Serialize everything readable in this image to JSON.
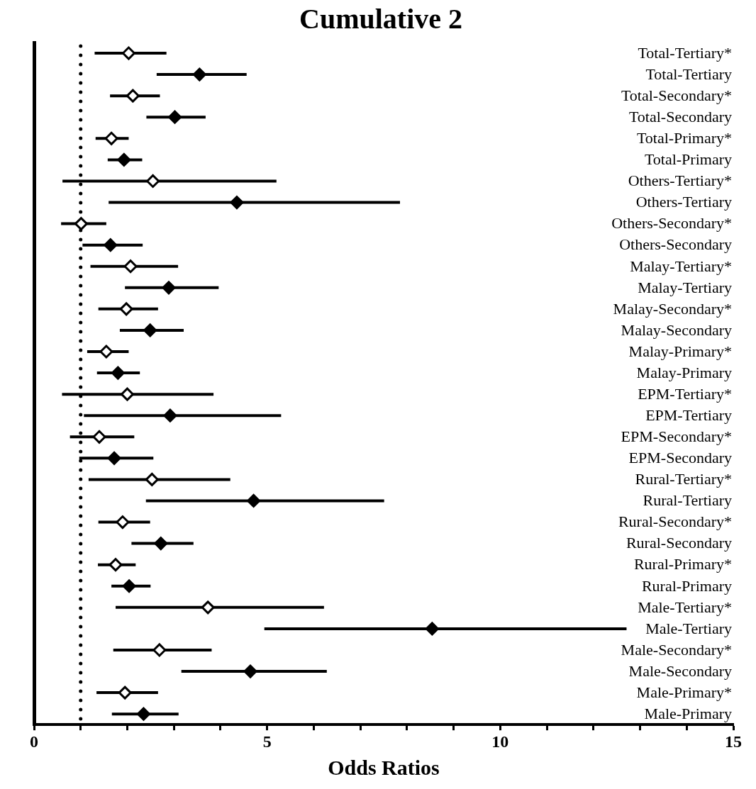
{
  "chart_data": {
    "type": "scatter",
    "title": "Cumulative 2",
    "xlabel": "Odds Ratios",
    "orientation": "horizontal",
    "marker": "diamond",
    "categories": [
      "Total-Tertiary*",
      "Total-Tertiary",
      "Total-Secondary*",
      "Total-Secondary",
      "Total-Primary*",
      "Total-Primary",
      "Others-Tertiary*",
      "Others-Tertiary",
      "Others-Secondary*",
      "Others-Secondary",
      "Malay-Tertiary*",
      "Malay-Tertiary",
      "Malay-Secondary*",
      "Malay-Secondary",
      "Malay-Primary*",
      "Malay-Primary",
      "EPM-Tertiary*",
      "EPM-Tertiary",
      "EPM-Secondary*",
      "EPM-Secondary",
      "Rural-Tertiary*",
      "Rural-Tertiary",
      "Rural-Secondary*",
      "Rural-Secondary",
      "Rural-Primary*",
      "Rural-Primary",
      "Male-Tertiary*",
      "Male-Tertiary",
      "Male-Secondary*",
      "Male-Secondary",
      "Male-Primary*",
      "Male-Primary"
    ],
    "series": [
      {
        "color": "#ffffff",
        "values": [
          2.03,
          null,
          2.12,
          null,
          1.66,
          null,
          2.55,
          null,
          1.01,
          null,
          2.07,
          null,
          1.98,
          null,
          1.55,
          null,
          2.0,
          null,
          1.4,
          null,
          2.53,
          null,
          1.9,
          null,
          1.75,
          null,
          3.73,
          null,
          2.69,
          null,
          1.95,
          null
        ],
        "errors": [
          [
            1.3,
            2.84
          ],
          null,
          [
            1.63,
            2.7
          ],
          null,
          [
            1.32,
            2.03
          ],
          null,
          [
            0.61,
            5.2
          ],
          null,
          [
            0.58,
            1.55
          ],
          null,
          [
            1.21,
            3.09
          ],
          null,
          [
            1.38,
            2.66
          ],
          null,
          [
            1.14,
            2.03
          ],
          null,
          [
            0.6,
            3.85
          ],
          null,
          [
            0.77,
            2.15
          ],
          null,
          [
            1.17,
            4.21
          ],
          null,
          [
            1.38,
            2.49
          ],
          null,
          [
            1.37,
            2.18
          ],
          null,
          [
            1.75,
            6.22
          ],
          null,
          [
            1.7,
            3.81
          ],
          null,
          [
            1.34,
            2.66
          ],
          null
        ]
      },
      {
        "color": "#000000",
        "values": [
          null,
          3.55,
          null,
          3.02,
          null,
          1.93,
          null,
          4.35,
          null,
          1.64,
          null,
          2.89,
          null,
          2.49,
          null,
          1.8,
          null,
          2.92,
          null,
          1.72,
          null,
          4.71,
          null,
          2.72,
          null,
          2.04,
          null,
          8.54,
          null,
          4.64,
          null,
          2.35
        ],
        "errors": [
          null,
          [
            2.63,
            4.56
          ],
          null,
          [
            2.41,
            3.68
          ],
          null,
          [
            1.58,
            2.32
          ],
          null,
          [
            1.6,
            7.85
          ],
          null,
          [
            1.04,
            2.33
          ],
          null,
          [
            1.95,
            3.96
          ],
          null,
          [
            1.84,
            3.21
          ],
          null,
          [
            1.35,
            2.27
          ],
          null,
          [
            1.07,
            5.3
          ],
          null,
          [
            0.97,
            2.56
          ],
          null,
          [
            2.4,
            7.51
          ],
          null,
          [
            2.09,
            3.42
          ],
          null,
          [
            1.66,
            2.5
          ],
          null,
          [
            4.94,
            12.71
          ],
          null,
          [
            3.16,
            6.28
          ],
          null,
          [
            1.67,
            3.1
          ]
        ]
      }
    ],
    "xlim": [
      0,
      15
    ],
    "xticks": [
      0,
      {
        "value": 1,
        "label": null
      },
      {
        "value": 2,
        "label": null
      },
      {
        "value": 3,
        "label": null
      },
      {
        "value": 4,
        "label": null
      },
      5,
      {
        "value": 6,
        "label": null
      },
      {
        "value": 7,
        "label": null
      },
      {
        "value": 8,
        "label": null
      },
      {
        "value": 9,
        "label": null
      },
      10,
      {
        "value": 11,
        "label": null
      },
      {
        "value": 12,
        "label": null
      },
      {
        "value": 13,
        "label": null
      },
      {
        "value": 14,
        "label": null
      },
      15
    ],
    "ref_lines": [
      {
        "axis": "x",
        "value": 1,
        "line_style": "dotted"
      }
    ]
  }
}
